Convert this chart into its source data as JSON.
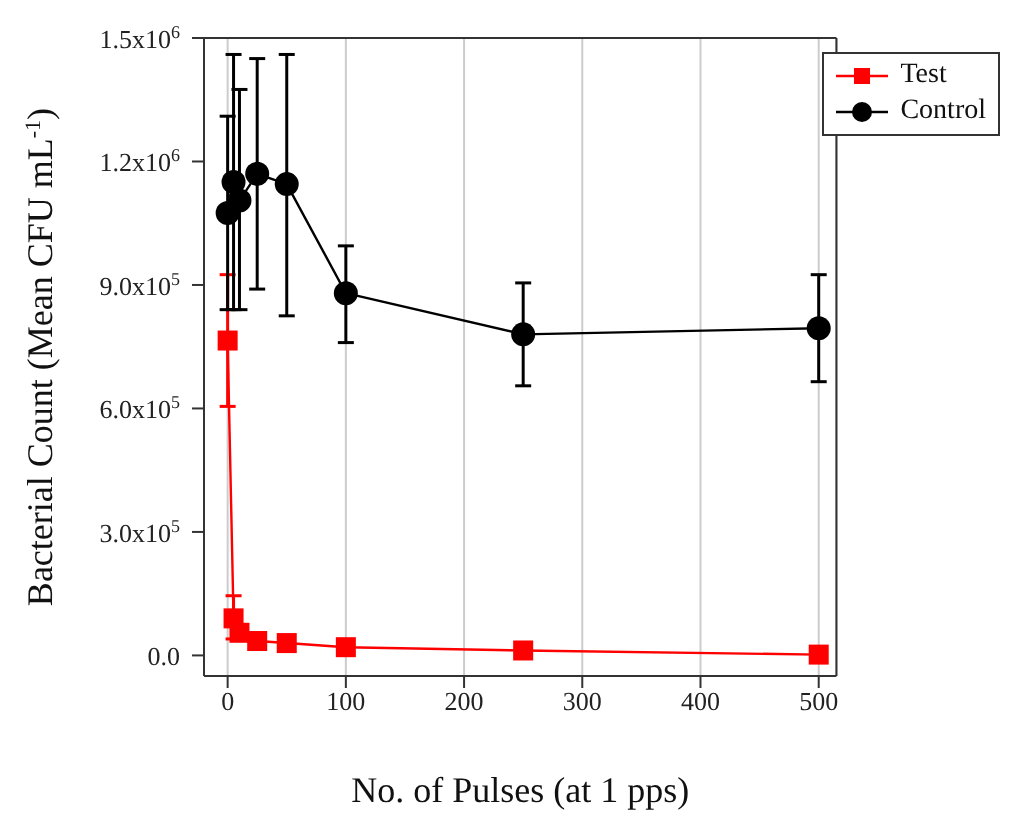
{
  "chart_data": {
    "type": "line",
    "xlabel": "No. of Pulses (at 1 pps)",
    "ylabel": "Bacterial Count (Mean CFU mL$^{-1}$)",
    "x": [
      0,
      5,
      10,
      25,
      50,
      100,
      250,
      500
    ],
    "series": [
      {
        "name": "Test",
        "color": "#ff0000",
        "marker": "square",
        "values": [
          765000,
          90000,
          55000,
          35000,
          30000,
          20000,
          12000,
          2000
        ],
        "errors": [
          [
            605000,
            925000
          ],
          [
            40000,
            145000
          ],
          null,
          null,
          null,
          null,
          null,
          null
        ]
      },
      {
        "name": "Control",
        "color": "#000000",
        "marker": "circle",
        "values": [
          1075000,
          1150000,
          1105000,
          1170000,
          1145000,
          880000,
          780000,
          795000
        ],
        "errors": [
          [
            840000,
            1310000
          ],
          [
            840000,
            1460000
          ],
          [
            840000,
            1375000
          ],
          [
            890000,
            1450000
          ],
          [
            825000,
            1460000
          ],
          [
            760000,
            995000
          ],
          [
            655000,
            905000
          ],
          [
            665000,
            925000
          ]
        ]
      }
    ],
    "xlim": [
      -20,
      515
    ],
    "xticks": [
      0,
      100,
      200,
      300,
      400,
      500
    ],
    "ylim": [
      -50000,
      1500000
    ],
    "yticks": [
      {
        "value": 0,
        "label": "0.0"
      },
      {
        "value": 300000,
        "label": "3.0x10$^{5}$"
      },
      {
        "value": 600000,
        "label": "6.0x10$^{5}$"
      },
      {
        "value": 900000,
        "label": "9.0x10$^{5}$"
      },
      {
        "value": 1200000,
        "label": "1.2x10$^{6}$"
      },
      {
        "value": 1500000,
        "label": "1.5x10$^{6}$"
      }
    ],
    "grid": "x",
    "legend": "top right"
  }
}
